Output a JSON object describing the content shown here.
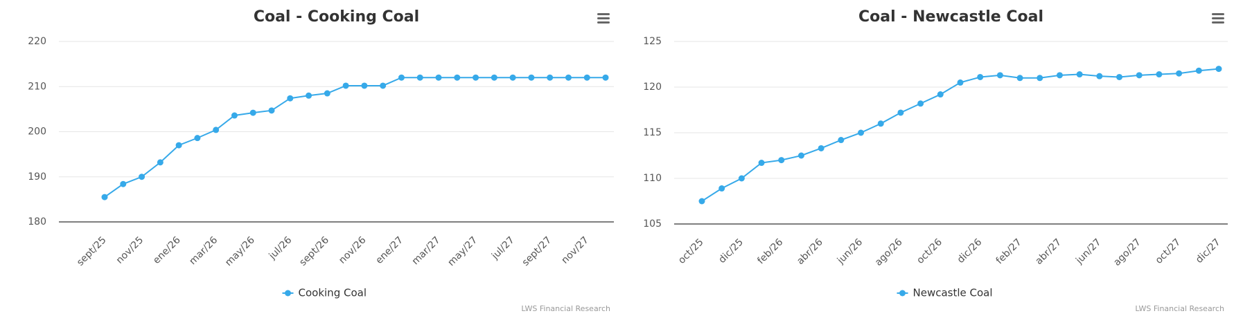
{
  "chart_data": [
    {
      "type": "line",
      "title": "Coal - Cooking Coal",
      "categories": [
        "sept/25",
        null,
        "nov/25",
        null,
        "ene/26",
        null,
        "mar/26",
        null,
        "may/26",
        null,
        "jul/26",
        null,
        "sept/26",
        null,
        "nov/26",
        null,
        "ene/27",
        null,
        "mar/27",
        null,
        "may/27",
        null,
        "jul/27",
        null,
        "sept/27",
        null,
        "nov/27",
        null
      ],
      "series": [
        {
          "name": "Cooking Coal",
          "color": "#36a9e9",
          "values": [
            185.5,
            188.4,
            190,
            193.2,
            197,
            198.6,
            200.4,
            203.6,
            204.2,
            204.7,
            207.4,
            208,
            208.5,
            210.2,
            210.2,
            210.2,
            212,
            212,
            212,
            212,
            212,
            212,
            212,
            212,
            212,
            212,
            212,
            212
          ]
        }
      ],
      "ylim": [
        180,
        220
      ],
      "yticks": [
        180,
        190,
        200,
        210,
        220
      ],
      "grid": true,
      "legend": "bottom",
      "credits": "LWS Financial Research"
    },
    {
      "type": "line",
      "title": "Coal - Newcastle Coal",
      "categories": [
        "oct/25",
        null,
        "dic/25",
        null,
        "feb/26",
        null,
        "abr/26",
        null,
        "jun/26",
        null,
        "ago/26",
        null,
        "oct/26",
        null,
        "dic/26",
        null,
        "feb/27",
        null,
        "abr/27",
        null,
        "jun/27",
        null,
        "ago/27",
        null,
        "oct/27",
        null,
        "dic/27"
      ],
      "series": [
        {
          "name": "Newcastle Coal",
          "color": "#36a9e9",
          "values": [
            107.5,
            108.9,
            110,
            111.7,
            112,
            112.5,
            113.3,
            114.2,
            115,
            116,
            117.2,
            118.2,
            119.2,
            120.5,
            121.1,
            121.3,
            121,
            121,
            121.3,
            121.4,
            121.2,
            121.1,
            121.3,
            121.4,
            121.5,
            121.8,
            122
          ]
        }
      ],
      "ylim": [
        105,
        125
      ],
      "yticks": [
        105,
        110,
        115,
        120,
        125
      ],
      "grid": true,
      "legend": "bottom",
      "credits": "LWS Financial Research"
    }
  ]
}
